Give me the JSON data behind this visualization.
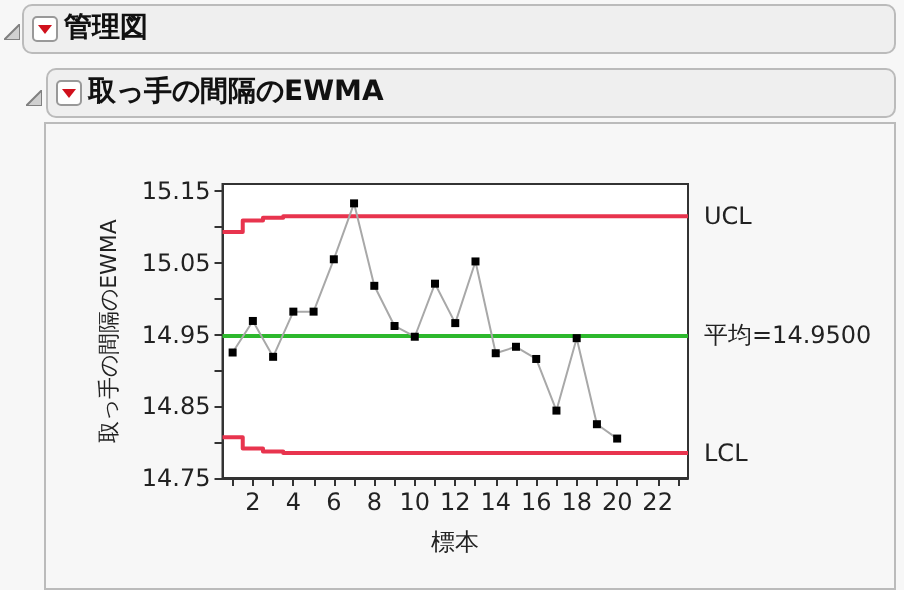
{
  "chart_data": {
    "type": "line",
    "title": "管理図",
    "subtitle": "取っ手の間隔のEWMA",
    "xlabel": "標本",
    "ylabel": "取っ手の間隔のEWMA",
    "x": [
      1,
      2,
      3,
      4,
      5,
      6,
      7,
      8,
      9,
      10,
      11,
      12,
      13,
      14,
      15,
      16,
      17,
      18,
      19,
      20
    ],
    "series": [
      {
        "color": "#000000",
        "marker": "square",
        "values": [
          14.925,
          14.969,
          14.919,
          14.982,
          14.982,
          15.055,
          15.133,
          15.018,
          14.962,
          14.947,
          15.021,
          14.966,
          15.052,
          14.924,
          14.933,
          14.916,
          14.844,
          14.945,
          14.825,
          14.805
        ]
      },
      {
        "name": "UCL",
        "type": "step",
        "color": "#e8344e",
        "x": [
          0.5,
          1.5,
          2.5,
          3.5,
          23.5
        ],
        "values": [
          15.093,
          15.109,
          15.113,
          15.115,
          15.115
        ]
      },
      {
        "name": "LCL",
        "type": "step",
        "color": "#e8344e",
        "x": [
          0.5,
          1.5,
          2.5,
          3.5,
          23.5
        ],
        "values": [
          14.807,
          14.791,
          14.787,
          14.785,
          14.785
        ]
      }
    ],
    "ref_lines": [
      {
        "axis": "y",
        "value": 14.95,
        "label": "平均=14.9500",
        "color": "#2db82d"
      }
    ],
    "xlim": [
      0.5,
      23.5
    ],
    "xticks": [
      {
        "value": 1,
        "label": null
      },
      2,
      {
        "value": 3,
        "label": null
      },
      4,
      {
        "value": 5,
        "label": null
      },
      6,
      {
        "value": 7,
        "label": null
      },
      8,
      {
        "value": 9,
        "label": null
      },
      10,
      {
        "value": 11,
        "label": null
      },
      12,
      {
        "value": 13,
        "label": null
      },
      14,
      {
        "value": 15,
        "label": null
      },
      16,
      {
        "value": 17,
        "label": null
      },
      18,
      {
        "value": 19,
        "label": null
      },
      20,
      {
        "value": 21,
        "label": null
      },
      22,
      {
        "value": 23,
        "label": null
      }
    ],
    "ylim": [
      14.75,
      15.16
    ],
    "yticks": [
      14.75,
      {
        "value": 14.8,
        "label": null
      },
      14.85,
      {
        "value": 14.9,
        "label": null
      },
      14.95,
      {
        "value": 15.0,
        "label": null
      },
      15.05,
      {
        "value": 15.1,
        "label": null
      },
      15.15
    ],
    "grid": false,
    "legend": false,
    "line_style": "solid"
  }
}
